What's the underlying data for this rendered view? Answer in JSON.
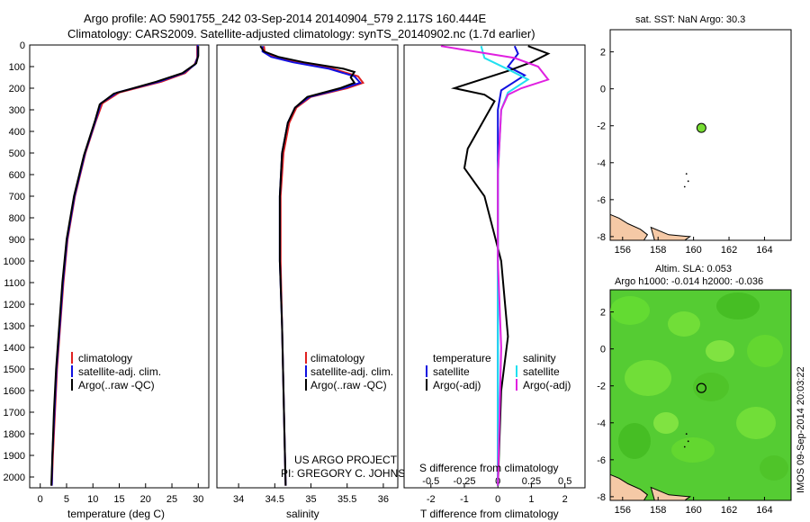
{
  "title": {
    "line1": "Argo profile: AO 5901755_242 03-Sep-2014 20140904_579 2.117S 160.444E",
    "line2": "Climatology: CARS2009. Satellite-adjusted climatology: synTS_20140902.nc (1.7d earlier)"
  },
  "colors": {
    "red": "#e02020",
    "blue": "#1010e0",
    "black": "#000000",
    "cyan": "#20e0f0",
    "magenta": "#e020e0",
    "map_green": "#55cc33",
    "land": "#f5c9a6"
  },
  "credit": {
    "line1": "US ARGO PROJECT",
    "line2": "PI: GREGORY C. JOHNSON"
  },
  "side_label": "IMOS 09-Sep-2014 20:03:22",
  "chart_data": [
    {
      "type": "line",
      "xlabel": "temperature (deg C)",
      "xlim": [
        -2,
        32
      ],
      "ylim": [
        2050,
        0
      ],
      "xticks": [
        "0",
        "5",
        "10",
        "15",
        "20",
        "25",
        "30"
      ],
      "yticks": [
        "0",
        "100",
        "200",
        "300",
        "400",
        "500",
        "600",
        "700",
        "800",
        "900",
        "1000",
        "1100",
        "1200",
        "1300",
        "1400",
        "1500",
        "1600",
        "1700",
        "1800",
        "1900",
        "2000"
      ],
      "legend": [
        "climatology",
        "satellite-adj. clim.",
        "Argo(..raw -QC)"
      ],
      "series": [
        {
          "name": "climatology",
          "color": "red",
          "points": [
            [
              29.8,
              0
            ],
            [
              29.8,
              60
            ],
            [
              29.3,
              90
            ],
            [
              27.5,
              130
            ],
            [
              23,
              170
            ],
            [
              15,
              220
            ],
            [
              11.8,
              270
            ],
            [
              10.6,
              350
            ],
            [
              8.6,
              500
            ],
            [
              6.6,
              700
            ],
            [
              5.2,
              900
            ],
            [
              4.4,
              1100
            ],
            [
              3.8,
              1300
            ],
            [
              3.2,
              1500
            ],
            [
              2.8,
              1700
            ],
            [
              2.4,
              1900
            ],
            [
              2.2,
              2040
            ]
          ]
        },
        {
          "name": "satellite-adj. clim.",
          "color": "blue",
          "points": [
            [
              29.9,
              0
            ],
            [
              29.9,
              55
            ],
            [
              29.4,
              90
            ],
            [
              27.2,
              130
            ],
            [
              22.5,
              170
            ],
            [
              14.6,
              220
            ],
            [
              11.5,
              270
            ],
            [
              10.5,
              350
            ],
            [
              8.5,
              500
            ],
            [
              6.5,
              700
            ],
            [
              5.1,
              900
            ],
            [
              4.3,
              1100
            ],
            [
              3.7,
              1300
            ],
            [
              3.1,
              1500
            ],
            [
              2.7,
              1700
            ],
            [
              2.3,
              1900
            ],
            [
              2.2,
              2040
            ]
          ]
        },
        {
          "name": "Argo(..raw -QC)",
          "color": "black",
          "points": [
            [
              30.0,
              5
            ],
            [
              30.0,
              50
            ],
            [
              29.6,
              85
            ],
            [
              27,
              130
            ],
            [
              22,
              170
            ],
            [
              14,
              225
            ],
            [
              11.3,
              275
            ],
            [
              10.4,
              350
            ],
            [
              8.3,
              510
            ],
            [
              6.4,
              700
            ],
            [
              5.0,
              900
            ],
            [
              4.2,
              1100
            ],
            [
              3.6,
              1300
            ],
            [
              3.0,
              1500
            ],
            [
              2.6,
              1700
            ],
            [
              2.3,
              1900
            ],
            [
              2.1,
              2040
            ]
          ]
        }
      ]
    },
    {
      "type": "line",
      "xlabel": "salinity",
      "xlim": [
        33.7,
        36.2
      ],
      "ylim": [
        2050,
        0
      ],
      "xticks": [
        "34",
        "34.5",
        "35",
        "35.5",
        "36"
      ],
      "legend": [
        "climatology",
        "satellite-adj. clim.",
        "Argo(..raw -QC)"
      ],
      "series": [
        {
          "name": "climatology",
          "color": "red",
          "points": [
            [
              34.35,
              5
            ],
            [
              34.36,
              30
            ],
            [
              34.5,
              55
            ],
            [
              34.8,
              80
            ],
            [
              35.3,
              110
            ],
            [
              35.65,
              145
            ],
            [
              35.72,
              175
            ],
            [
              35.5,
              200
            ],
            [
              35.0,
              240
            ],
            [
              34.8,
              290
            ],
            [
              34.7,
              360
            ],
            [
              34.62,
              500
            ],
            [
              34.58,
              700
            ],
            [
              34.58,
              1000
            ],
            [
              34.6,
              1300
            ],
            [
              34.62,
              1600
            ],
            [
              34.64,
              1900
            ],
            [
              34.65,
              2040
            ]
          ]
        },
        {
          "name": "satellite-adj. clim.",
          "color": "blue",
          "points": [
            [
              34.33,
              5
            ],
            [
              34.33,
              30
            ],
            [
              34.45,
              55
            ],
            [
              34.75,
              80
            ],
            [
              35.25,
              110
            ],
            [
              35.6,
              145
            ],
            [
              35.68,
              175
            ],
            [
              35.45,
              200
            ],
            [
              34.98,
              240
            ],
            [
              34.78,
              290
            ],
            [
              34.68,
              360
            ],
            [
              34.6,
              500
            ],
            [
              34.57,
              700
            ],
            [
              34.57,
              1000
            ],
            [
              34.6,
              1300
            ],
            [
              34.62,
              1600
            ],
            [
              34.64,
              1900
            ],
            [
              34.65,
              2040
            ]
          ]
        },
        {
          "name": "Argo(..raw -QC)",
          "color": "black",
          "points": [
            [
              34.3,
              5
            ],
            [
              34.35,
              30
            ],
            [
              34.55,
              55
            ],
            [
              34.9,
              80
            ],
            [
              35.45,
              110
            ],
            [
              35.6,
              125
            ],
            [
              35.55,
              150
            ],
            [
              35.6,
              175
            ],
            [
              35.4,
              200
            ],
            [
              34.95,
              240
            ],
            [
              34.78,
              290
            ],
            [
              34.68,
              360
            ],
            [
              34.6,
              500
            ],
            [
              34.57,
              700
            ],
            [
              34.57,
              1000
            ],
            [
              34.6,
              1300
            ],
            [
              34.62,
              1600
            ],
            [
              34.64,
              1900
            ],
            [
              34.65,
              2040
            ]
          ]
        }
      ]
    },
    {
      "type": "line",
      "xlabel": "T difference from climatology",
      "top_label": "S difference from climatology",
      "xlim": [
        -2.8,
        2.6
      ],
      "ylim": [
        2050,
        0
      ],
      "xticks": [
        "-2",
        "-1",
        "0",
        "1",
        "2"
      ],
      "top_ticks": [
        "-0.5",
        "-0.25",
        "0",
        "0.25",
        "0.5"
      ],
      "legend": [
        "temperature",
        "satellite",
        "Argo(-adj)",
        "salinity",
        "satellite",
        "Argo(-adj)"
      ],
      "series": [
        {
          "name": "satellite",
          "group": "temperature",
          "color": "blue",
          "points": [
            [
              0.5,
              5
            ],
            [
              0.6,
              40
            ],
            [
              0.3,
              100
            ],
            [
              0.8,
              140
            ],
            [
              0.5,
              170
            ],
            [
              0.1,
              210
            ],
            [
              0.0,
              300
            ],
            [
              0.0,
              600
            ],
            [
              0.0,
              1000
            ],
            [
              0.0,
              1500
            ],
            [
              0.0,
              2040
            ]
          ]
        },
        {
          "name": "Argo(-adj)",
          "group": "temperature",
          "color": "black",
          "points": [
            [
              0.9,
              5
            ],
            [
              1.5,
              40
            ],
            [
              1.0,
              80
            ],
            [
              0.3,
              120
            ],
            [
              -1.3,
              200
            ],
            [
              -0.4,
              230
            ],
            [
              -0.1,
              260
            ],
            [
              -0.9,
              480
            ],
            [
              -1.0,
              570
            ],
            [
              -0.4,
              700
            ],
            [
              0.1,
              1000
            ],
            [
              0.3,
              1350
            ],
            [
              0.1,
              1600
            ],
            [
              0.0,
              2040
            ]
          ]
        },
        {
          "name": "satellite",
          "group": "salinity",
          "color": "cyan",
          "points": [
            [
              -0.5,
              5
            ],
            [
              -0.4,
              60
            ],
            [
              0.4,
              120
            ],
            [
              0.9,
              160
            ],
            [
              0.3,
              220
            ],
            [
              0.1,
              300
            ],
            [
              0.0,
              600
            ],
            [
              0.0,
              1000
            ],
            [
              0.0,
              1500
            ],
            [
              0.0,
              2040
            ]
          ]
        },
        {
          "name": "Argo(-adj)",
          "group": "salinity",
          "color": "magenta",
          "points": [
            [
              -1.7,
              5
            ],
            [
              0.5,
              60
            ],
            [
              1.2,
              100
            ],
            [
              1.5,
              160
            ],
            [
              0.7,
              200
            ],
            [
              0.3,
              230
            ],
            [
              0.1,
              300
            ],
            [
              0.0,
              600
            ],
            [
              0.0,
              1000
            ],
            [
              0.1,
              1400
            ],
            [
              0.0,
              2040
            ]
          ]
        }
      ]
    },
    {
      "type": "scatter",
      "title": "sat. SST: NaN Argo: 30.3",
      "xlim": [
        155.3,
        165.5
      ],
      "ylim": [
        -8.2,
        3.2
      ],
      "xticks": [
        "156",
        "158",
        "160",
        "162",
        "164"
      ],
      "yticks": [
        "2",
        "0",
        "-2",
        "-4",
        "-6",
        "-8"
      ],
      "profile": [
        160.444,
        -2.117
      ]
    },
    {
      "type": "heatmap",
      "title": "Altim. SLA: 0.053",
      "subtitle": "Argo h1000: -0.014 h2000: -0.036",
      "xlim": [
        155.3,
        165.5
      ],
      "ylim": [
        -8.2,
        3.2
      ],
      "xticks": [
        "156",
        "158",
        "160",
        "162",
        "164"
      ],
      "yticks": [
        "2",
        "0",
        "-2",
        "-4",
        "-6",
        "-8"
      ],
      "profile": [
        160.444,
        -2.117
      ]
    }
  ]
}
